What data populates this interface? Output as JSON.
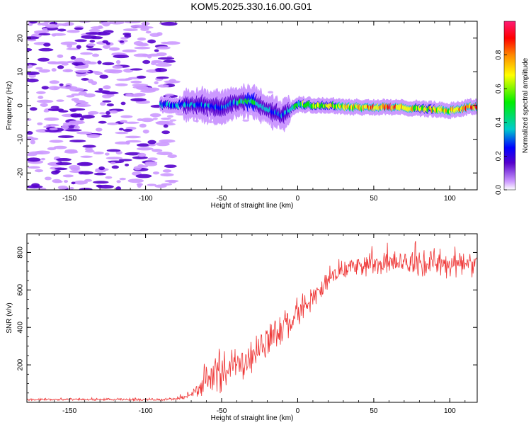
{
  "title": "KOM5.2025.330.16.00.G01",
  "colors": {
    "snr_line": "#ee3333",
    "frame": "#000000",
    "colormap": [
      "#ffffff",
      "#cc99ff",
      "#5500cc",
      "#0000ff",
      "#00cccc",
      "#00ee00",
      "#ffff00",
      "#ff8800",
      "#ff0000",
      "#ff1a75"
    ]
  },
  "chart_data": [
    {
      "type": "heatmap",
      "name": "spectrogram",
      "xlabel": "Height of straight line (km)",
      "ylabel": "Frequency (Hz)",
      "xlim": [
        -178,
        118
      ],
      "ylim": [
        -25,
        25
      ],
      "xticks": [
        -150,
        -100,
        -50,
        0,
        50,
        100
      ],
      "xtick_labels": [
        "-150",
        "-100",
        "-50",
        "0",
        "50",
        "100"
      ],
      "yticks": [
        -20,
        -10,
        0,
        10,
        20
      ],
      "ytick_labels": [
        "-20",
        "-10",
        "0",
        "10",
        "20"
      ],
      "colorbar": {
        "label": "Normalized spectral amplitude",
        "range": [
          0,
          1
        ],
        "ticks": [
          0.0,
          0.2,
          0.4,
          0.6,
          0.8
        ],
        "tick_labels": [
          "0.0",
          "0.2",
          "0.4",
          "0.6",
          "0.8"
        ]
      },
      "signal_ridge": {
        "x_km": [
          -90,
          -70,
          -60,
          -50,
          -40,
          -30,
          -20,
          -10,
          0,
          20,
          40,
          60,
          80,
          100,
          115
        ],
        "freq_hz": [
          0.2,
          0.3,
          0,
          -0.8,
          1,
          1.5,
          -1,
          -3,
          0.3,
          0,
          -0.5,
          -0.5,
          -0.8,
          -1.5,
          -0.3
        ],
        "amplitude": [
          0.3,
          0.35,
          0.3,
          0.3,
          0.4,
          0.5,
          0.35,
          0.3,
          0.5,
          0.65,
          0.75,
          0.85,
          0.65,
          0.7,
          0.9
        ]
      },
      "noise_region_x_km": [
        -178,
        -90
      ]
    },
    {
      "type": "line",
      "name": "snr",
      "xlabel": "Height of straight line (km)",
      "ylabel": "SNR (v/v)",
      "xlim": [
        -178,
        118
      ],
      "ylim": [
        0,
        900
      ],
      "xticks": [
        -150,
        -100,
        -50,
        0,
        50,
        100
      ],
      "xtick_labels": [
        "-150",
        "-100",
        "-50",
        "0",
        "50",
        "100"
      ],
      "yticks": [
        200,
        400,
        600,
        800
      ],
      "ytick_labels": [
        "200",
        "400",
        "600",
        "800"
      ],
      "envelope": {
        "x": [
          -178,
          -90,
          -80,
          -75,
          -70,
          -65,
          -60,
          -55,
          -50,
          -45,
          -40,
          -35,
          -30,
          -25,
          -20,
          -15,
          -10,
          -5,
          0,
          5,
          10,
          15,
          20,
          25,
          30,
          40,
          50,
          60,
          70,
          80,
          90,
          100,
          110,
          118
        ],
        "mean": [
          15,
          15,
          18,
          25,
          40,
          70,
          100,
          130,
          160,
          180,
          200,
          220,
          250,
          290,
          330,
          360,
          390,
          430,
          470,
          510,
          560,
          610,
          650,
          680,
          710,
          730,
          740,
          745,
          745,
          740,
          745,
          740,
          740,
          740
        ],
        "spread": [
          8,
          8,
          10,
          15,
          25,
          50,
          80,
          100,
          110,
          110,
          110,
          110,
          110,
          110,
          100,
          100,
          100,
          100,
          90,
          90,
          80,
          70,
          60,
          60,
          60,
          60,
          70,
          70,
          80,
          80,
          90,
          90,
          90,
          90
        ]
      }
    }
  ]
}
